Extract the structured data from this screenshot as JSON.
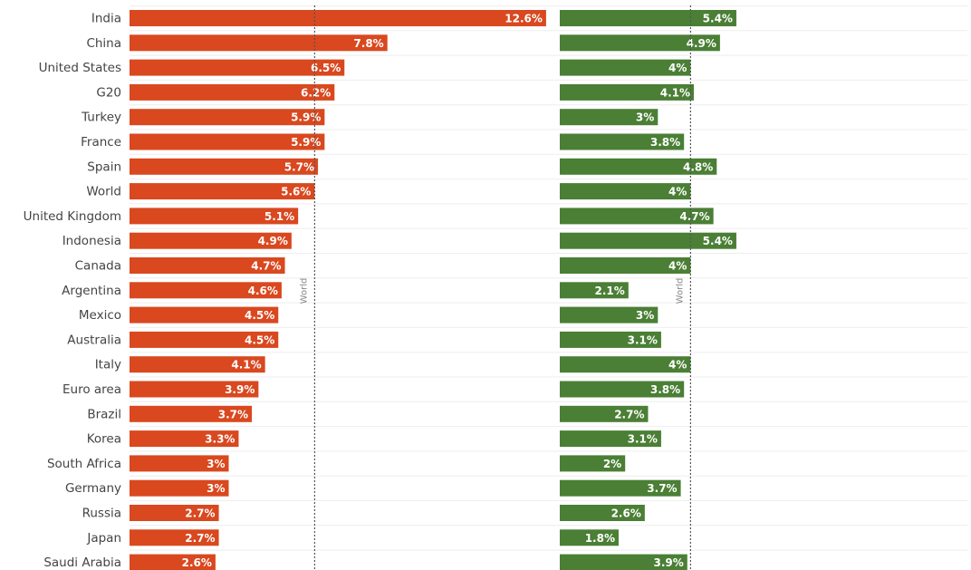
{
  "chart_data": [
    {
      "type": "bar",
      "orientation": "horizontal",
      "categories": [
        "India",
        "China",
        "United States",
        "G20",
        "Turkey",
        "France",
        "Spain",
        "World",
        "United Kingdom",
        "Indonesia",
        "Canada",
        "Argentina",
        "Mexico",
        "Australia",
        "Italy",
        "Euro area",
        "Brazil",
        "Korea",
        "South Africa",
        "Germany",
        "Russia",
        "Japan",
        "Saudi Arabia"
      ],
      "values": [
        12.6,
        7.8,
        6.5,
        6.2,
        5.9,
        5.9,
        5.7,
        5.6,
        5.1,
        4.9,
        4.7,
        4.6,
        4.5,
        4.5,
        4.1,
        3.9,
        3.7,
        3.3,
        3,
        3,
        2.7,
        2.7,
        2.6
      ],
      "labels": [
        "12.6%",
        "7.8%",
        "6.5%",
        "6.2%",
        "5.9%",
        "5.9%",
        "5.7%",
        "5.6%",
        "5.1%",
        "4.9%",
        "4.7%",
        "4.6%",
        "4.5%",
        "4.5%",
        "4.1%",
        "3.9%",
        "3.7%",
        "3.3%",
        "3%",
        "3%",
        "2.7%",
        "2.7%",
        "2.6%"
      ],
      "color": "#d9481f",
      "reference_line": {
        "label": "World",
        "value": 5.6
      },
      "grid": true
    },
    {
      "type": "bar",
      "orientation": "horizontal",
      "categories": [
        "India",
        "China",
        "United States",
        "G20",
        "Turkey",
        "France",
        "Spain",
        "World",
        "United Kingdom",
        "Indonesia",
        "Canada",
        "Argentina",
        "Mexico",
        "Australia",
        "Italy",
        "Euro area",
        "Brazil",
        "Korea",
        "South Africa",
        "Germany",
        "Russia",
        "Japan",
        "Saudi Arabia"
      ],
      "values": [
        5.4,
        4.9,
        4,
        4.1,
        3,
        3.8,
        4.8,
        4,
        4.7,
        5.4,
        4,
        2.1,
        3,
        3.1,
        4,
        3.8,
        2.7,
        3.1,
        2,
        3.7,
        2.6,
        1.8,
        3.9
      ],
      "labels": [
        "5.4%",
        "4.9%",
        "4%",
        "4.1%",
        "3%",
        "3.8%",
        "4.8%",
        "4%",
        "4.7%",
        "5.4%",
        "4%",
        "2.1%",
        "3%",
        "3.1%",
        "4%",
        "3.8%",
        "2.7%",
        "3.1%",
        "2%",
        "3.7%",
        "2.6%",
        "1.8%",
        "3.9%"
      ],
      "color": "#4a7f35",
      "reference_line": {
        "label": "World",
        "value": 4
      },
      "grid": true
    }
  ]
}
